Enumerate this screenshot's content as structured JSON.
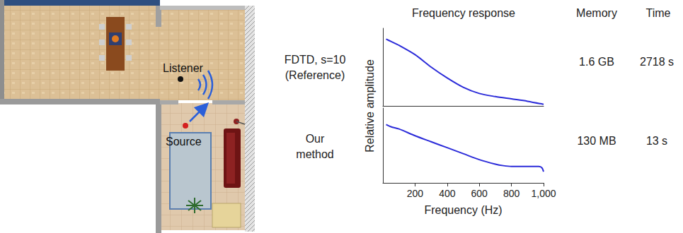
{
  "scene": {
    "labels": [
      "Listener",
      "Source"
    ]
  },
  "header": {
    "columns": [
      "Frequency response",
      "Memory",
      "Time"
    ]
  },
  "rows": [
    {
      "label": [
        "FDTD, s=10",
        "(Reference)"
      ],
      "memory": "1.6 GB",
      "time": "2718 s"
    },
    {
      "label": [
        "Our",
        "method"
      ],
      "memory": "130 MB",
      "time": "13 s"
    }
  ],
  "chart_data": [
    {
      "type": "line",
      "ylabel": "Relative amplitude",
      "color": "#2b2bd9",
      "x": [
        20,
        50,
        100,
        200,
        300,
        400,
        500,
        600,
        700,
        800,
        900,
        1000
      ],
      "values": [
        0.86,
        0.83,
        0.78,
        0.66,
        0.5,
        0.36,
        0.24,
        0.16,
        0.12,
        0.09,
        0.06,
        0.02
      ],
      "xlim": [
        0,
        1000
      ],
      "xticks": [
        200,
        400,
        600,
        800,
        1000
      ],
      "ylim": [
        0,
        1
      ],
      "yticks": [],
      "tick_labels": false,
      "grid": false
    },
    {
      "type": "line",
      "xlabel": "Frequency (Hz)",
      "color": "#2b2bd9",
      "x": [
        20,
        50,
        100,
        200,
        300,
        400,
        500,
        600,
        700,
        750,
        800,
        900,
        970,
        990,
        1000
      ],
      "values": [
        0.78,
        0.75,
        0.72,
        0.63,
        0.55,
        0.47,
        0.39,
        0.31,
        0.25,
        0.23,
        0.22,
        0.22,
        0.22,
        0.2,
        0.15
      ],
      "xlim": [
        0,
        1000
      ],
      "xticks": [
        200,
        400,
        600,
        800,
        1000
      ],
      "ylim": [
        0,
        1
      ],
      "yticks": [],
      "tick_labels": "x",
      "grid": false
    }
  ]
}
